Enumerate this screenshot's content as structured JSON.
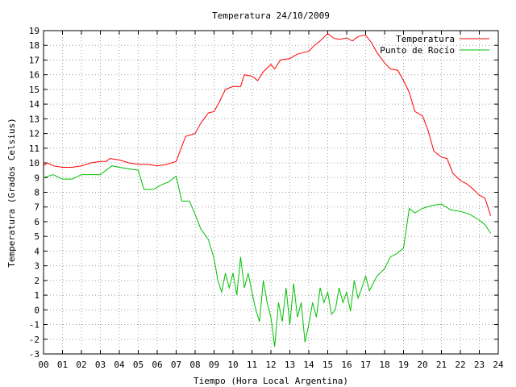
{
  "chart_data": {
    "type": "line",
    "title": "Temperatura 24/10/2009",
    "xlabel": "Tiempo (Hora Local Argentina)",
    "ylabel": "Temperatura (Grados Celsius)",
    "xlim": [
      0,
      24
    ],
    "ylim": [
      -3,
      19
    ],
    "grid": true,
    "legend": "top-right",
    "x_ticks": [
      "00",
      "01",
      "02",
      "03",
      "04",
      "05",
      "06",
      "07",
      "08",
      "09",
      "10",
      "11",
      "12",
      "13",
      "14",
      "15",
      "16",
      "17",
      "18",
      "19",
      "20",
      "21",
      "22",
      "23",
      "24"
    ],
    "y_ticks": [
      -3,
      -2,
      -1,
      0,
      1,
      2,
      3,
      4,
      5,
      6,
      7,
      8,
      9,
      10,
      11,
      12,
      13,
      14,
      15,
      16,
      17,
      18,
      19
    ],
    "series": [
      {
        "name": "Temperatura",
        "color": "#ff0000",
        "points": [
          [
            0,
            9.8
          ],
          [
            0.2,
            10.0
          ],
          [
            0.5,
            9.8
          ],
          [
            1,
            9.7
          ],
          [
            1.5,
            9.7
          ],
          [
            2,
            9.8
          ],
          [
            2.5,
            10.0
          ],
          [
            3,
            10.1
          ],
          [
            3.3,
            10.1
          ],
          [
            3.5,
            10.3
          ],
          [
            4,
            10.2
          ],
          [
            4.5,
            10.0
          ],
          [
            5,
            9.9
          ],
          [
            5.5,
            9.9
          ],
          [
            6,
            9.8
          ],
          [
            6.5,
            9.9
          ],
          [
            7,
            10.1
          ],
          [
            7.2,
            10.8
          ],
          [
            7.5,
            11.8
          ],
          [
            8,
            12.0
          ],
          [
            8.3,
            12.7
          ],
          [
            8.7,
            13.4
          ],
          [
            9,
            13.5
          ],
          [
            9.3,
            14.2
          ],
          [
            9.6,
            15.0
          ],
          [
            10,
            15.2
          ],
          [
            10.4,
            15.2
          ],
          [
            10.6,
            16.0
          ],
          [
            11,
            15.9
          ],
          [
            11.3,
            15.6
          ],
          [
            11.6,
            16.2
          ],
          [
            12,
            16.7
          ],
          [
            12.2,
            16.4
          ],
          [
            12.5,
            17.0
          ],
          [
            13,
            17.1
          ],
          [
            13.4,
            17.4
          ],
          [
            13.7,
            17.5
          ],
          [
            14,
            17.6
          ],
          [
            14.3,
            18.0
          ],
          [
            14.6,
            18.3
          ],
          [
            15,
            18.8
          ],
          [
            15.3,
            18.5
          ],
          [
            15.6,
            18.4
          ],
          [
            16,
            18.5
          ],
          [
            16.3,
            18.3
          ],
          [
            16.6,
            18.6
          ],
          [
            17,
            18.7
          ],
          [
            17.3,
            18.2
          ],
          [
            17.6,
            17.5
          ],
          [
            18,
            16.8
          ],
          [
            18.3,
            16.4
          ],
          [
            18.7,
            16.3
          ],
          [
            19,
            15.6
          ],
          [
            19.3,
            14.8
          ],
          [
            19.6,
            13.5
          ],
          [
            20,
            13.2
          ],
          [
            20.3,
            12.2
          ],
          [
            20.6,
            10.8
          ],
          [
            21,
            10.4
          ],
          [
            21.3,
            10.3
          ],
          [
            21.6,
            9.3
          ],
          [
            22,
            8.8
          ],
          [
            22.3,
            8.6
          ],
          [
            22.6,
            8.3
          ],
          [
            23,
            7.8
          ],
          [
            23.3,
            7.6
          ],
          [
            23.6,
            6.4
          ]
        ]
      },
      {
        "name": "Punto de Rocío",
        "color": "#00c000",
        "points": [
          [
            0,
            9.0
          ],
          [
            0.5,
            9.2
          ],
          [
            1,
            8.9
          ],
          [
            1.5,
            8.9
          ],
          [
            2,
            9.2
          ],
          [
            3,
            9.2
          ],
          [
            3.3,
            9.5
          ],
          [
            3.6,
            9.8
          ],
          [
            4,
            9.7
          ],
          [
            5,
            9.5
          ],
          [
            5.3,
            8.2
          ],
          [
            5.8,
            8.2
          ],
          [
            6.2,
            8.5
          ],
          [
            6.6,
            8.7
          ],
          [
            7,
            9.1
          ],
          [
            7.3,
            7.4
          ],
          [
            7.7,
            7.4
          ],
          [
            8,
            6.5
          ],
          [
            8.3,
            5.5
          ],
          [
            8.7,
            4.8
          ],
          [
            9,
            3.5
          ],
          [
            9.2,
            2.0
          ],
          [
            9.4,
            1.2
          ],
          [
            9.6,
            2.5
          ],
          [
            9.8,
            1.5
          ],
          [
            10,
            2.5
          ],
          [
            10.2,
            1.0
          ],
          [
            10.4,
            3.6
          ],
          [
            10.6,
            1.5
          ],
          [
            10.8,
            2.5
          ],
          [
            11,
            1.2
          ],
          [
            11.2,
            0.0
          ],
          [
            11.4,
            -0.8
          ],
          [
            11.6,
            2.0
          ],
          [
            11.8,
            0.5
          ],
          [
            12,
            -0.5
          ],
          [
            12.2,
            -2.5
          ],
          [
            12.4,
            0.5
          ],
          [
            12.6,
            -0.8
          ],
          [
            12.8,
            1.5
          ],
          [
            13,
            -1.0
          ],
          [
            13.2,
            1.8
          ],
          [
            13.4,
            -0.5
          ],
          [
            13.6,
            0.5
          ],
          [
            13.8,
            -2.2
          ],
          [
            14,
            -1.0
          ],
          [
            14.2,
            0.5
          ],
          [
            14.4,
            -0.5
          ],
          [
            14.6,
            1.5
          ],
          [
            14.8,
            0.5
          ],
          [
            15,
            1.2
          ],
          [
            15.2,
            -0.3
          ],
          [
            15.4,
            0.0
          ],
          [
            15.6,
            1.5
          ],
          [
            15.8,
            0.5
          ],
          [
            16,
            1.2
          ],
          [
            16.2,
            -0.1
          ],
          [
            16.4,
            2.0
          ],
          [
            16.6,
            0.8
          ],
          [
            16.8,
            1.5
          ],
          [
            17,
            2.3
          ],
          [
            17.2,
            1.3
          ],
          [
            17.6,
            2.3
          ],
          [
            18,
            2.8
          ],
          [
            18.3,
            3.6
          ],
          [
            18.6,
            3.8
          ],
          [
            19,
            4.2
          ],
          [
            19.3,
            6.9
          ],
          [
            19.6,
            6.6
          ],
          [
            20,
            6.9
          ],
          [
            20.5,
            7.1
          ],
          [
            21,
            7.2
          ],
          [
            21.5,
            6.8
          ],
          [
            22,
            6.7
          ],
          [
            22.5,
            6.5
          ],
          [
            23,
            6.1
          ],
          [
            23.3,
            5.8
          ],
          [
            23.6,
            5.2
          ]
        ]
      }
    ]
  }
}
